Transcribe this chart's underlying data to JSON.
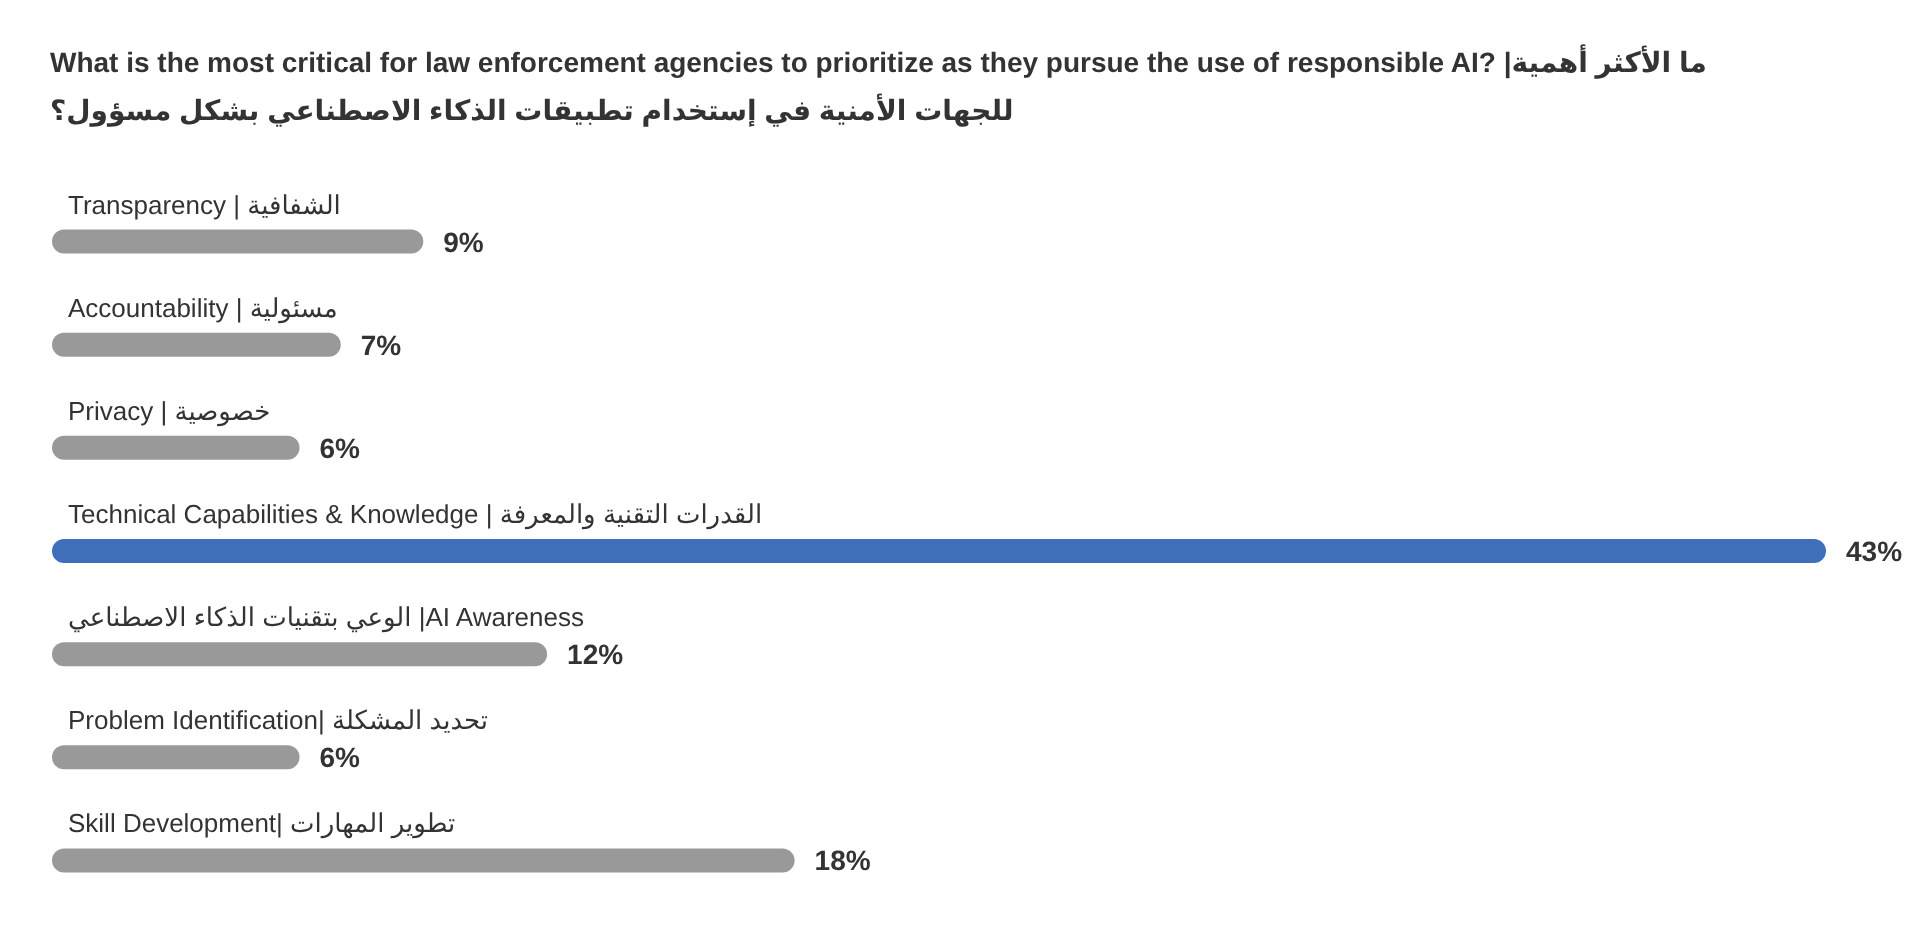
{
  "chart_data": {
    "type": "bar",
    "orientation": "horizontal",
    "title": "What is the most critical for law enforcement agencies to prioritize as they pursue the use of responsible AI? |ما الأكثر أهمية\nللجهات الأمنية في إستخدام تطبيقات الذكاء الاصطناعي بشكل مسؤول؟",
    "categories": [
      "Transparency | الشفافية",
      "Accountability | مسئولية",
      "Privacy | خصوصية",
      "Technical Capabilities & Knowledge | القدرات التقنية والمعرفة",
      "الوعي بتقنيات الذكاء الاصطناعي |AI Awareness",
      "Problem Identification| تحديد المشكلة",
      "Skill Development| تطوير المهارات"
    ],
    "values": [
      9,
      7,
      6,
      43,
      12,
      6,
      18
    ],
    "colors": [
      "#999999",
      "#999999",
      "#999999",
      "#3f6fba",
      "#999999",
      "#999999",
      "#999999"
    ],
    "value_labels": [
      "9%",
      "7%",
      "6%",
      "43%",
      "12%",
      "6%",
      "18%"
    ]
  }
}
